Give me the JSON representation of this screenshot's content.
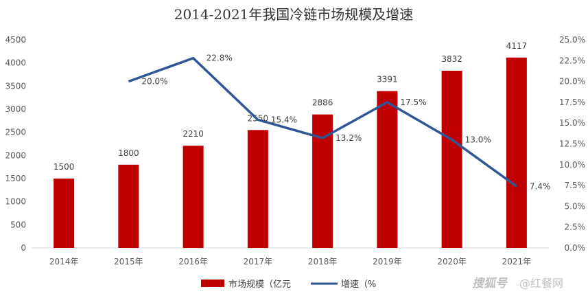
{
  "chart_data": {
    "type": "bar",
    "title": "2014-2021年我国冷链市场规模及增速",
    "categories": [
      "2014年",
      "2015年",
      "2016年",
      "2017年",
      "2018年",
      "2019年",
      "2020年",
      "2021年"
    ],
    "series": [
      {
        "name": "市场规模（亿元",
        "type": "bar",
        "axis": "left",
        "values": [
          1500,
          1800,
          2210,
          2550,
          2886,
          3391,
          3832,
          4117
        ],
        "labels": [
          "1500",
          "1800",
          "2210",
          "2550",
          "2886",
          "3391",
          "3832",
          "4117"
        ]
      },
      {
        "name": "增速（%",
        "type": "line",
        "axis": "right",
        "values": [
          null,
          20.0,
          22.8,
          15.4,
          13.2,
          17.5,
          13.0,
          7.4
        ],
        "labels": [
          "",
          "20.0%",
          "22.8%",
          "15.4%",
          "13.2%",
          "17.5%",
          "13.0%",
          "7.4%"
        ]
      }
    ],
    "y_left": {
      "min": 0,
      "max": 4500,
      "step": 500,
      "tick_labels": [
        "0",
        "500",
        "1000",
        "1500",
        "2000",
        "2500",
        "3000",
        "3500",
        "4000",
        "4500"
      ]
    },
    "y_right": {
      "min": 0,
      "max": 25,
      "step": 2.5,
      "tick_labels": [
        "0.0%",
        "2.5%",
        "5.0%",
        "7.5%",
        "10.0%",
        "12.5%",
        "15.0%",
        "17.5%",
        "20.0%",
        "22.5%",
        "25.0%"
      ]
    },
    "grid": false,
    "legend_position": "bottom",
    "colors": {
      "bar": "#c00000",
      "line": "#2f5597",
      "axis": "#d9d9d9"
    }
  },
  "watermark": {
    "mark": "搜狐号",
    "text": "@红餐网"
  }
}
